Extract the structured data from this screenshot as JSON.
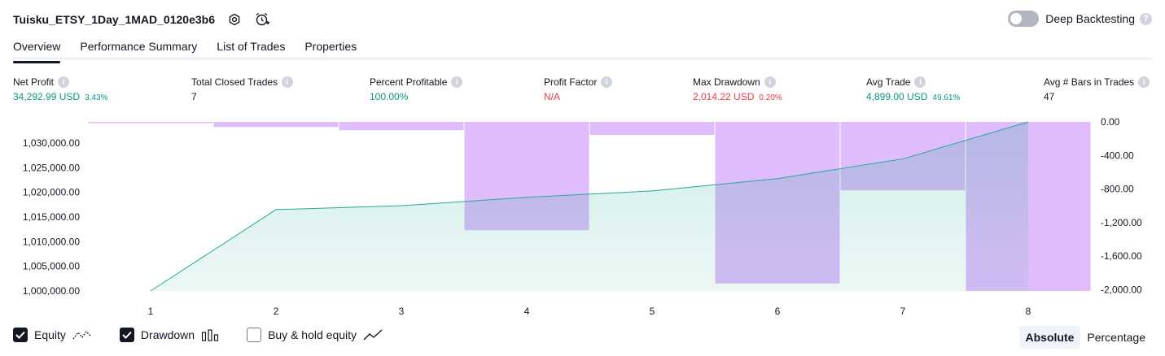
{
  "header": {
    "strategy_name": "Tuisku_ETSY_1Day_1MAD_0120e3b6"
  },
  "deep_backtesting": {
    "label": "Deep Backtesting",
    "enabled": false
  },
  "tabs": [
    {
      "label": "Overview",
      "active": true
    },
    {
      "label": "Performance Summary",
      "active": false
    },
    {
      "label": "List of Trades",
      "active": false
    },
    {
      "label": "Properties",
      "active": false
    }
  ],
  "metrics": {
    "net_profit": {
      "label": "Net Profit",
      "value": "34,292.99 USD",
      "pct": "3.43%"
    },
    "total_closed_trades": {
      "label": "Total Closed Trades",
      "value": "7"
    },
    "percent_profitable": {
      "label": "Percent Profitable",
      "value": "100.00%"
    },
    "profit_factor": {
      "label": "Profit Factor",
      "value": "N/A"
    },
    "max_drawdown": {
      "label": "Max Drawdown",
      "value": "2,014.22 USD",
      "pct": "0.20%"
    },
    "avg_trade": {
      "label": "Avg Trade",
      "value": "4,899.00 USD",
      "pct": "49.61%"
    },
    "avg_bars": {
      "label": "Avg # Bars in Trades",
      "value": "47"
    }
  },
  "chart_data": {
    "type": "area",
    "x": [
      1,
      2,
      3,
      4,
      5,
      6,
      7,
      8
    ],
    "left_axis": {
      "ticks": [
        "1,030,000.00",
        "1,025,000.00",
        "1,020,000.00",
        "1,015,000.00",
        "1,010,000.00",
        "1,005,000.00",
        "1,000,000.00"
      ],
      "ylim": [
        1000000,
        1034292.99
      ]
    },
    "right_axis": {
      "ticks": [
        "0.00",
        "-400.00",
        "-800.00",
        "-1,200.00",
        "-1,600.00",
        "-2,000.00"
      ],
      "ylim": [
        -2014.22,
        0
      ]
    },
    "series": [
      {
        "name": "Equity",
        "type": "area",
        "axis": "left",
        "values": [
          1000000,
          1016500,
          1017300,
          1019000,
          1020300,
          1022800,
          1026800,
          1034292.99
        ]
      },
      {
        "name": "Drawdown",
        "type": "bar",
        "axis": "right",
        "values": [
          -15,
          -60,
          -100,
          -1290,
          -155,
          -1925,
          -815,
          -2014.22
        ]
      }
    ],
    "colors": {
      "equity_line": "#22ab94",
      "equity_fill": "#22ab94",
      "drawdown": "#c98ff8"
    }
  },
  "legend": {
    "items": [
      {
        "label": "Equity",
        "checked": true,
        "icon": "equity-line-icon"
      },
      {
        "label": "Drawdown",
        "checked": true,
        "icon": "drawdown-bars-icon"
      },
      {
        "label": "Buy & hold equity",
        "checked": false,
        "icon": "buy-hold-line-icon"
      }
    ]
  },
  "mode": {
    "absolute": "Absolute",
    "percentage": "Percentage",
    "selected": "Absolute"
  }
}
